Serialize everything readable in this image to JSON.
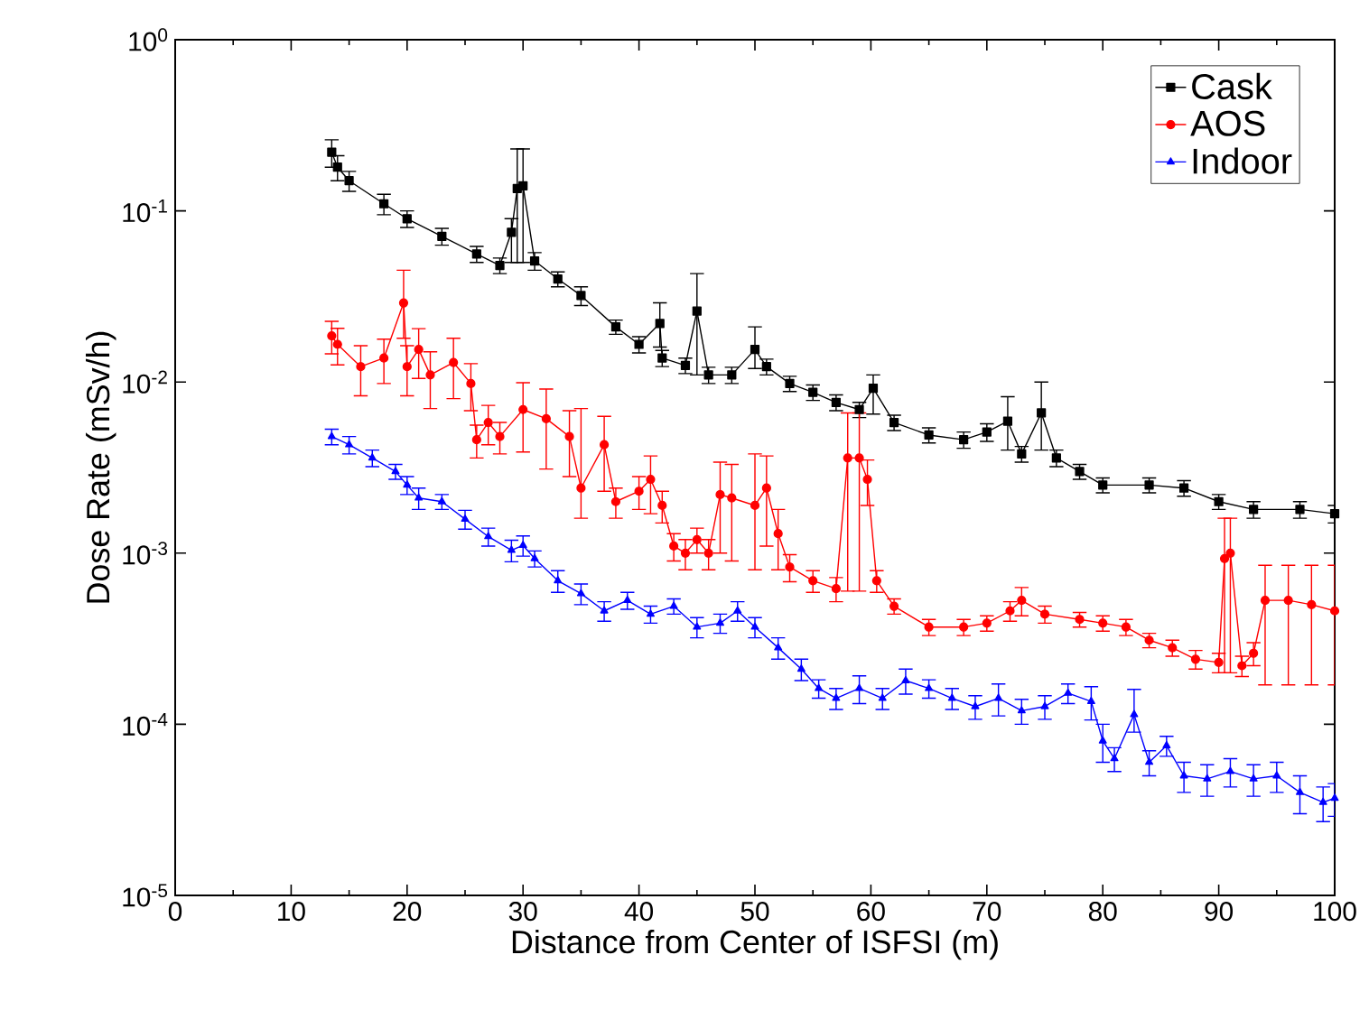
{
  "chart_data": {
    "type": "line",
    "xlabel": "Distance from Center of ISFSI (m)",
    "ylabel": "Dose Rate (mSv/h)",
    "log": "y",
    "xlim": [
      0,
      100
    ],
    "xticks": [
      0,
      10,
      20,
      30,
      40,
      50,
      60,
      70,
      80,
      90,
      100
    ],
    "ylim": [
      1e-05,
      1
    ],
    "yticks": [
      {
        "value": 1e-05,
        "label": "10$^{-5}$"
      },
      {
        "value": 0.0001,
        "label": "10$^{-4}$"
      },
      {
        "value": 0.001,
        "label": "10$^{-3}$"
      },
      {
        "value": 0.01,
        "label": "10$^{-2}$"
      },
      {
        "value": 0.1,
        "label": "10$^{-1}$"
      },
      {
        "value": 1,
        "label": "10$^{0}$"
      }
    ],
    "legend": "top right",
    "grid": false,
    "series": [
      {
        "name": "Cask",
        "color": "#000000",
        "marker": "square",
        "x": [
          13.5,
          14,
          15,
          18,
          20,
          23,
          26,
          28,
          29,
          29.5,
          30,
          31,
          33,
          35,
          38,
          40,
          41.8,
          42,
          44,
          45,
          46,
          48,
          50,
          51,
          53,
          55,
          57,
          59,
          60.2,
          62,
          65,
          68,
          70,
          71.8,
          73,
          74.7,
          76,
          78,
          80,
          84,
          87,
          90,
          93,
          97,
          100
        ],
        "values": [
          0.22,
          0.18,
          0.15,
          0.11,
          0.09,
          0.071,
          0.056,
          0.048,
          0.075,
          0.135,
          0.14,
          0.051,
          0.04,
          0.032,
          0.021,
          0.0166,
          0.022,
          0.0138,
          0.0125,
          0.026,
          0.011,
          0.011,
          0.0155,
          0.0123,
          0.0098,
          0.0087,
          0.0076,
          0.0069,
          0.0092,
          0.0058,
          0.0049,
          0.0046,
          0.0051,
          0.0059,
          0.0038,
          0.0066,
          0.0036,
          0.003,
          0.0025,
          0.0025,
          0.0024,
          0.002,
          0.0018,
          0.0018,
          0.0017
        ],
        "errors": [
          0.04,
          0.03,
          0.02,
          0.015,
          0.01,
          0.008,
          0.006,
          0.005,
          [
            0.05,
            0.09
          ],
          [
            0.05,
            0.23
          ],
          [
            0.05,
            0.23
          ],
          0.006,
          0.004,
          0.004,
          0.002,
          0.0018,
          [
            0.016,
            0.029
          ],
          0.0015,
          0.0013,
          [
            0.011,
            0.043
          ],
          0.0012,
          0.0012,
          [
            0.012,
            0.021
          ],
          0.0013,
          0.001,
          0.0009,
          0.0008,
          0.0007,
          [
            0.0065,
            0.011
          ],
          0.0006,
          0.0005,
          0.0005,
          0.0006,
          [
            0.004,
            0.0082
          ],
          0.0004,
          [
            0.004,
            0.01
          ],
          0.0004,
          0.0003,
          0.00025,
          0.00025,
          0.00025,
          0.0002,
          0.0002,
          0.0002,
          0.0002
        ]
      },
      {
        "name": "AOS",
        "color": "#ff0000",
        "marker": "circle",
        "x": [
          13.5,
          14,
          16,
          18,
          19.7,
          20,
          21,
          22,
          24,
          25.5,
          26,
          27,
          28,
          30,
          32,
          34,
          35,
          37,
          38,
          40,
          41,
          42,
          43,
          44,
          45,
          46,
          47,
          48,
          50,
          51,
          52,
          53,
          55,
          57,
          58,
          59,
          59.7,
          60.5,
          62,
          65,
          68,
          70,
          72,
          73,
          75,
          78,
          80,
          82,
          84,
          86,
          88,
          90,
          90.5,
          91,
          92,
          93,
          94,
          96,
          98,
          100
        ],
        "values": [
          0.0186,
          0.0166,
          0.0123,
          0.0138,
          0.029,
          0.0123,
          0.0155,
          0.011,
          0.013,
          0.0098,
          0.0046,
          0.0058,
          0.0048,
          0.0069,
          0.0061,
          0.0048,
          0.0024,
          0.0043,
          0.002,
          0.0023,
          0.0027,
          0.0019,
          0.0011,
          0.001,
          0.0012,
          0.001,
          0.0022,
          0.0021,
          0.0019,
          0.0024,
          0.0013,
          0.00083,
          0.00069,
          0.00062,
          0.0036,
          0.0036,
          0.0027,
          0.00069,
          0.00049,
          0.00037,
          0.00037,
          0.00039,
          0.00046,
          0.00053,
          0.00044,
          0.00041,
          0.00039,
          0.00037,
          0.00031,
          0.00028,
          0.00024,
          0.00023,
          0.00093,
          0.001,
          0.00022,
          0.00026,
          0.00053,
          0.00053,
          0.0005,
          0.00046
        ],
        "errors": [
          0.004,
          0.004,
          0.004,
          0.004,
          [
            0.018,
            0.045
          ],
          0.004,
          0.005,
          0.004,
          0.005,
          0.003,
          0.001,
          0.0015,
          0.001,
          0.003,
          0.003,
          0.002,
          [
            0.0016,
            0.007
          ],
          0.002,
          0.0004,
          0.0005,
          0.001,
          0.0004,
          0.0002,
          0.0002,
          0.0002,
          0.0002,
          0.0012,
          0.0012,
          [
            0.0008,
            0.0038
          ],
          0.0013,
          0.0005,
          0.00015,
          0.0001,
          0.0001,
          [
            0.0006,
            0.0066
          ],
          [
            0.0006,
            0.0066
          ],
          0.0008,
          0.0001,
          5e-05,
          4e-05,
          4e-05,
          4e-05,
          6e-05,
          0.0001,
          5e-05,
          4e-05,
          4e-05,
          4e-05,
          3e-05,
          3e-05,
          3e-05,
          3e-05,
          [
            0.0002,
            0.0016
          ],
          [
            0.0002,
            0.0016
          ],
          3e-05,
          4e-05,
          [
            0.00017,
            0.00085
          ],
          [
            0.00017,
            0.00085
          ],
          [
            0.00017,
            0.00085
          ],
          [
            0.00017,
            0.00085
          ]
        ]
      },
      {
        "name": "Indoor",
        "color": "#0000ff",
        "marker": "triangle",
        "x": [
          13.5,
          15,
          17,
          19,
          20,
          21,
          23,
          25,
          27,
          29,
          30,
          31,
          33,
          35,
          37,
          39,
          41,
          43,
          45,
          47,
          48.5,
          50,
          52,
          54,
          55.5,
          57,
          59,
          61,
          63,
          65,
          67,
          69,
          71,
          73,
          75,
          77,
          79,
          80,
          81,
          82.7,
          84,
          85.5,
          87,
          89,
          91,
          93,
          95,
          97,
          99,
          100
        ],
        "values": [
          0.0048,
          0.0043,
          0.0036,
          0.003,
          0.0025,
          0.0021,
          0.002,
          0.00158,
          0.00125,
          0.00104,
          0.00111,
          0.00093,
          0.00069,
          0.00058,
          0.00046,
          0.00053,
          0.00044,
          0.00049,
          0.00037,
          0.00039,
          0.00046,
          0.00037,
          0.00028,
          0.00021,
          0.000162,
          0.000142,
          0.000162,
          0.000142,
          0.00018,
          0.000162,
          0.000142,
          0.000127,
          0.000142,
          0.00012,
          0.000127,
          0.000152,
          0.000136,
          8e-05,
          6.3e-05,
          0.000114,
          6e-05,
          7.5e-05,
          5e-05,
          4.8e-05,
          5.3e-05,
          4.8e-05,
          5e-05,
          4e-05,
          3.5e-05,
          3.7e-05
        ],
        "errors": [
          0.0005,
          0.0005,
          0.0004,
          0.0003,
          0.0003,
          0.0003,
          0.0002,
          0.0002,
          0.00015,
          0.00015,
          0.00015,
          0.0001,
          0.0001,
          8e-05,
          6e-05,
          6e-05,
          5e-05,
          5e-05,
          5e-05,
          5e-05,
          6e-05,
          5e-05,
          4e-05,
          3e-05,
          2e-05,
          2e-05,
          3e-05,
          2e-05,
          3e-05,
          2e-05,
          2e-05,
          2e-05,
          3e-05,
          2e-05,
          2e-05,
          2e-05,
          3e-05,
          2e-05,
          1e-05,
          [
            9e-05,
            0.00016
          ],
          1e-05,
          1e-05,
          1e-05,
          1e-05,
          1e-05,
          1e-05,
          1e-05,
          1e-05,
          8e-06,
          8e-06
        ]
      }
    ]
  }
}
